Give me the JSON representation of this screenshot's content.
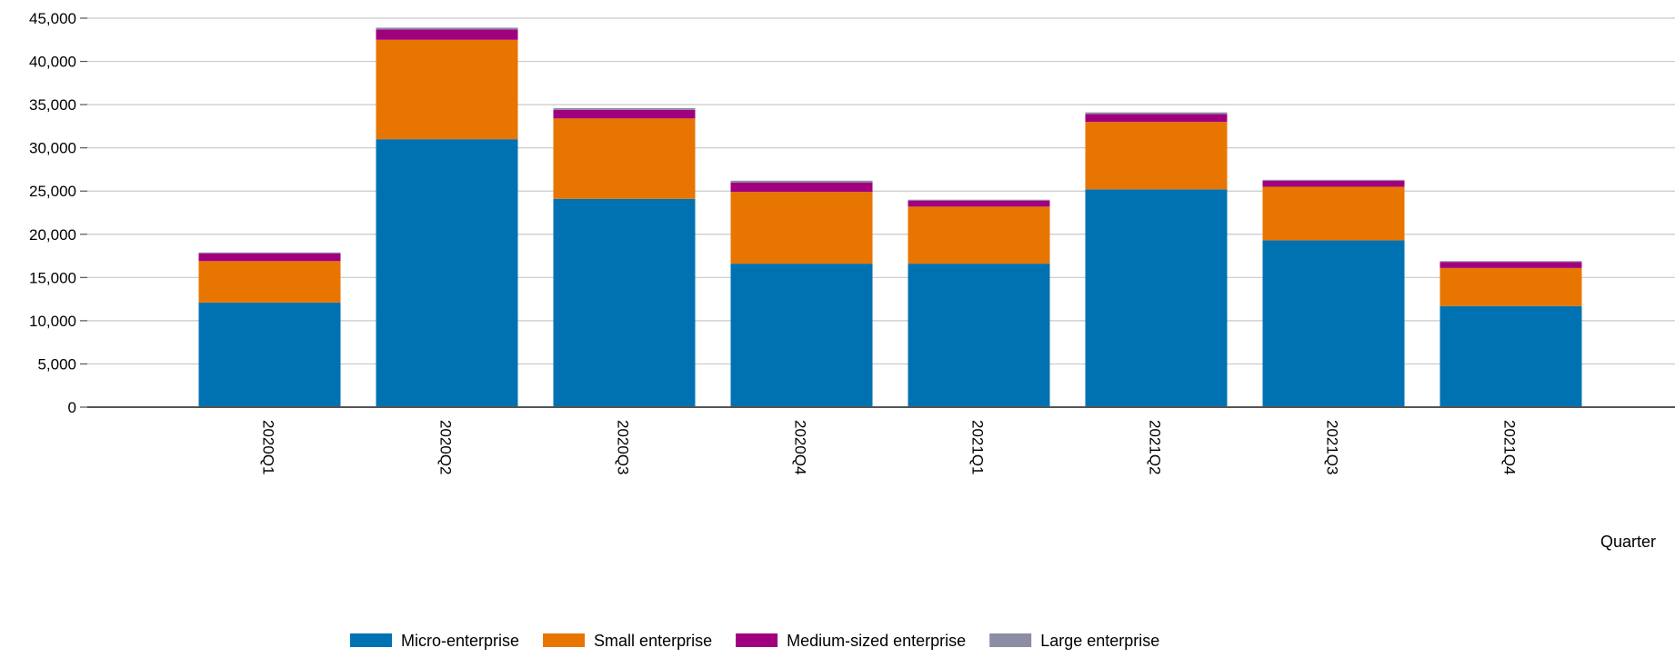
{
  "chart_data": {
    "type": "bar",
    "stacked": true,
    "categories": [
      "2020Q1",
      "2020Q2",
      "2020Q3",
      "2020Q4",
      "2021Q1",
      "2021Q2",
      "2021Q3",
      "2021Q4"
    ],
    "series": [
      {
        "name": "Micro-enterprise",
        "color": "#0072b2",
        "values": [
          12100,
          31000,
          24100,
          16600,
          16600,
          25200,
          19300,
          11700
        ]
      },
      {
        "name": "Small enterprise",
        "color": "#e87500",
        "values": [
          4800,
          11500,
          9300,
          8300,
          6600,
          7800,
          6200,
          4400
        ]
      },
      {
        "name": "Medium-sized enterprise",
        "color": "#a0007e",
        "values": [
          900,
          1200,
          1000,
          1100,
          700,
          900,
          700,
          700
        ]
      },
      {
        "name": "Large enterprise",
        "color": "#8c8ca3",
        "values": [
          100,
          200,
          200,
          200,
          100,
          200,
          100,
          100
        ]
      }
    ],
    "xlabel": "Quarter",
    "ylabel": "",
    "ylim": [
      0,
      45000
    ],
    "yticks": [
      "0",
      "5,000",
      "10,000",
      "15,000",
      "20,000",
      "25,000",
      "30,000",
      "35,000",
      "40,000",
      "45,000"
    ],
    "grid": true,
    "legend_position": "bottom"
  }
}
